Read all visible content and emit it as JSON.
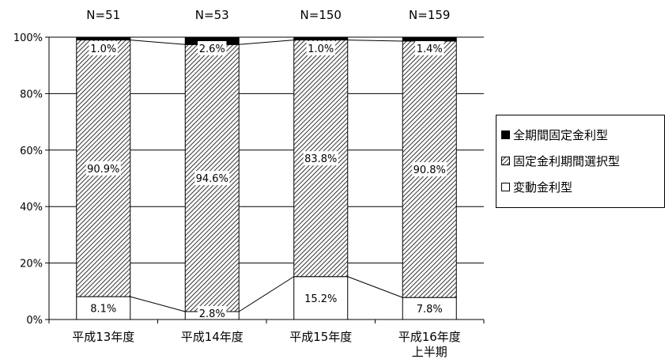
{
  "chart_data": {
    "type": "bar",
    "stacked": true,
    "percent": true,
    "categories": [
      "平成13年度",
      "平成14年度",
      "平成15年度",
      "平成16年度\n上半期"
    ],
    "n_labels": [
      "N=51",
      "N=53",
      "N=150",
      "N=159"
    ],
    "series": [
      {
        "name": "変動金利型",
        "values": [
          8.1,
          2.8,
          15.2,
          7.8
        ],
        "color": "#ffffff",
        "pattern": "none"
      },
      {
        "name": "固定金利期間選択型",
        "values": [
          90.9,
          94.6,
          83.8,
          90.8
        ],
        "color": "#ffffff",
        "pattern": "diagonal-hatch"
      },
      {
        "name": "全期間固定金利型",
        "values": [
          1.0,
          2.6,
          1.0,
          1.4
        ],
        "color": "#000000",
        "pattern": "solid"
      }
    ],
    "value_labels": [
      [
        "8.1%",
        "2.8%",
        "15.2%",
        "7.8%"
      ],
      [
        "90.9%",
        "94.6%",
        "83.8%",
        "90.8%"
      ],
      [
        "1.0%",
        "2.6%",
        "1.0%",
        "1.4%"
      ]
    ],
    "yticks": [
      "0%",
      "20%",
      "40%",
      "60%",
      "80%",
      "100%"
    ],
    "ylim": [
      0,
      100
    ],
    "grid": true,
    "series_lines": true,
    "legend_position": "right",
    "legend_order": [
      "全期間固定金利型",
      "固定金利期間選択型",
      "変動金利型"
    ]
  }
}
